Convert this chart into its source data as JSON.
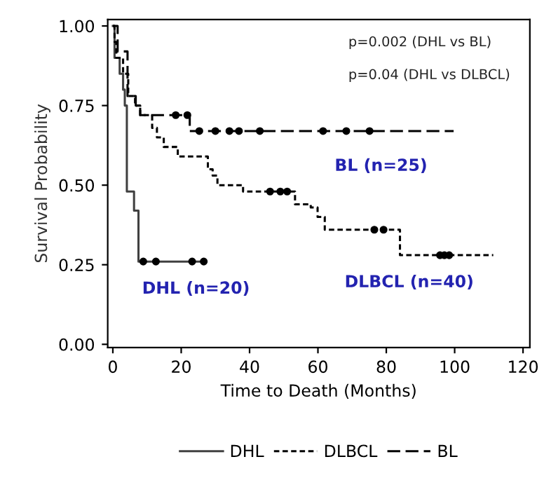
{
  "chart_data": {
    "type": "step",
    "xlabel": "Time to Death (Months)",
    "ylabel": "Survival Probability",
    "xlim": [
      -1.5,
      122
    ],
    "ylim": [
      -0.01,
      1.02
    ],
    "xticks": [
      0,
      20,
      40,
      60,
      80,
      100,
      120
    ],
    "yticks": [
      {
        "value": 0,
        "label": "0.00"
      },
      {
        "value": 0.25,
        "label": "0.25"
      },
      {
        "value": 0.5,
        "label": "0.50"
      },
      {
        "value": 0.75,
        "label": "0.75"
      },
      {
        "value": 1,
        "label": "1.00"
      }
    ],
    "grid": false,
    "legend": "bottom",
    "marker": "none",
    "series": [
      {
        "name": "DHL",
        "color": "#404040",
        "line_style": "solid",
        "x": [
          0,
          0.5,
          2,
          3,
          3.5,
          4.1,
          6.2,
          7.5,
          26.6
        ],
        "values": [
          1.0,
          0.9,
          0.85,
          0.8,
          0.75,
          0.48,
          0.42,
          0.26,
          0.26
        ]
      },
      {
        "name": "DLBCL",
        "color": "#000000",
        "line_style": "dotted",
        "x": [
          0,
          0.5,
          1,
          2.5,
          3,
          4.5,
          6.5,
          8,
          11.5,
          12.9,
          14.9,
          19,
          27.8,
          29.2,
          30.6,
          38.1,
          53.3,
          57.9,
          59.9,
          62,
          84,
          111.3
        ],
        "values": [
          1.0,
          0.95,
          0.9,
          0.9,
          0.85,
          0.78,
          0.75,
          0.72,
          0.68,
          0.65,
          0.62,
          0.59,
          0.55,
          0.53,
          0.5,
          0.48,
          0.44,
          0.43,
          0.4,
          0.36,
          0.28,
          0.28
        ]
      },
      {
        "name": "BL",
        "color": "#000000",
        "line_style": "dashed",
        "x": [
          0,
          1.4,
          4.3,
          6.7,
          8,
          22.5,
          99.7
        ],
        "values": [
          1.0,
          0.92,
          0.78,
          0.75,
          0.72,
          0.67,
          0.67
        ]
      },
      {
        "type": "scatter",
        "color": "#000000",
        "marker": "circle",
        "x": [
          8.9,
          12.6,
          23.2,
          26.6,
          18.4,
          21.8,
          25.3,
          30,
          34.1,
          36.9,
          43,
          61.5,
          68.3,
          75.1,
          46,
          49,
          51,
          76.5,
          79.2,
          95.7,
          97,
          98.4
        ],
        "values": [
          0.26,
          0.26,
          0.26,
          0.26,
          0.72,
          0.72,
          0.67,
          0.67,
          0.67,
          0.67,
          0.67,
          0.67,
          0.67,
          0.67,
          0.48,
          0.48,
          0.48,
          0.36,
          0.36,
          0.28,
          0.28,
          0.28
        ]
      }
    ],
    "annotations": [
      "p=0.002 (DHL vs BL)",
      "p=0.04 (DHL vs DLBCL)",
      {
        "text": "BL (n=25)",
        "x": 100,
        "y": 0.67
      },
      {
        "text": "DLBCL (n=40)",
        "x": 111.3,
        "y": 0.28
      },
      {
        "text": "DHL (n=20)",
        "x": 26.6,
        "y": 0.26
      }
    ]
  }
}
